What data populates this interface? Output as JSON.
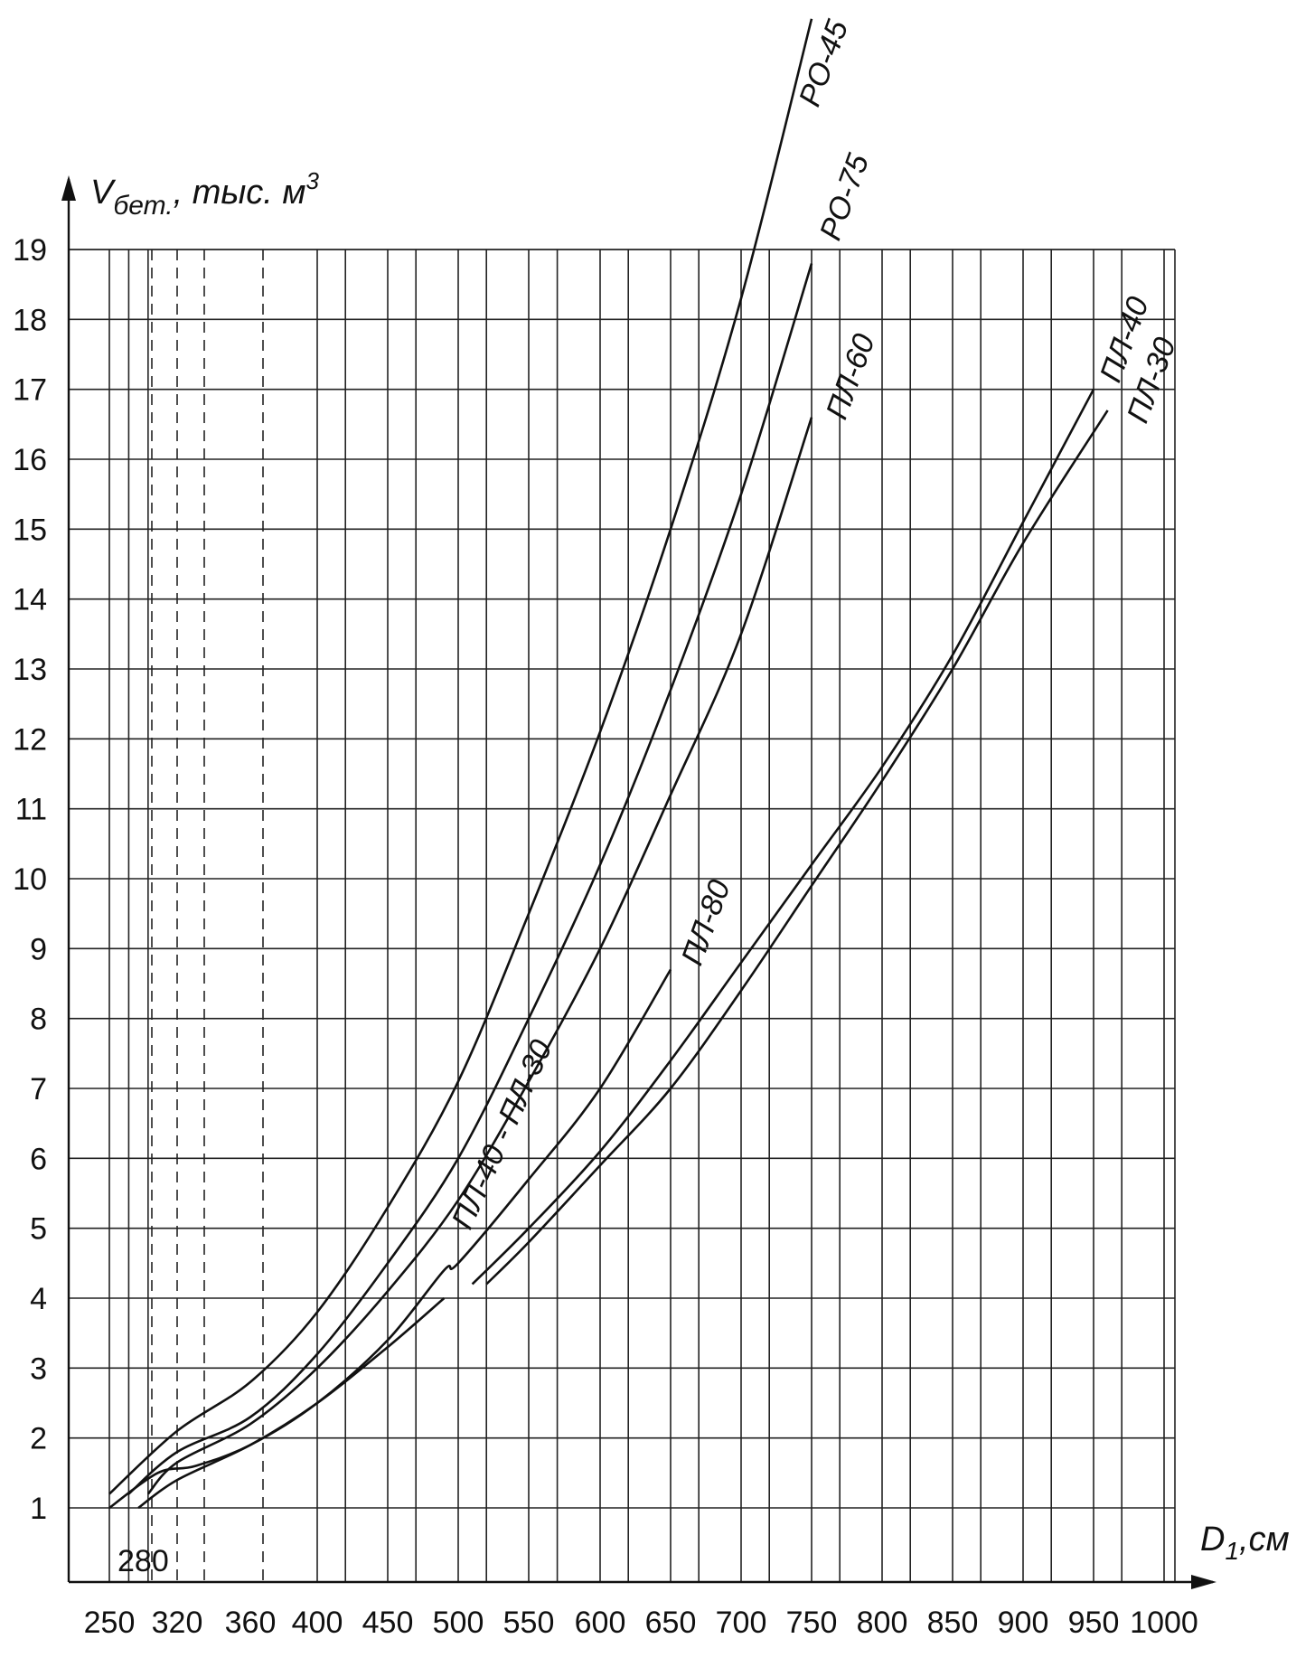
{
  "chart_data": {
    "type": "line",
    "ylabel": "Vбет., тыс. м3",
    "ylabel_parts": {
      "main": "V",
      "sub": "бет.",
      "rest": ", тыс. м",
      "sup": "3"
    },
    "xlabel": "D1,см",
    "xlabel_parts": {
      "main": "D",
      "sub": "1",
      "rest": ",см"
    },
    "x_ticks": [
      "250",
      "320",
      "360",
      "400",
      "450",
      "500",
      "550",
      "600",
      "650",
      "700",
      "750",
      "800",
      "850",
      "900",
      "950",
      "1000"
    ],
    "y_ticks": [
      "1",
      "2",
      "3",
      "4",
      "5",
      "6",
      "7",
      "8",
      "9",
      "10",
      "11",
      "12",
      "13",
      "14",
      "15",
      "16",
      "17",
      "18",
      "19"
    ],
    "extra_x_label": "280",
    "xlim": [
      250,
      1000
    ],
    "ylim": [
      1,
      19
    ],
    "grid": true,
    "series": [
      {
        "name": "РО-45",
        "points": [
          [
            250,
            1.2
          ],
          [
            320,
            2.1
          ],
          [
            360,
            2.8
          ],
          [
            400,
            3.8
          ],
          [
            450,
            5.3
          ],
          [
            500,
            7.1
          ],
          [
            550,
            9.5
          ],
          [
            600,
            12.1
          ],
          [
            650,
            15.0
          ],
          [
            700,
            18.3
          ],
          [
            750,
            22.3
          ]
        ]
      },
      {
        "name": "РО-75",
        "points": [
          [
            270,
            1.2
          ],
          [
            320,
            1.8
          ],
          [
            360,
            2.3
          ],
          [
            400,
            3.2
          ],
          [
            450,
            4.5
          ],
          [
            500,
            6.0
          ],
          [
            550,
            8.0
          ],
          [
            600,
            10.2
          ],
          [
            650,
            12.7
          ],
          [
            700,
            15.5
          ],
          [
            750,
            18.8
          ]
        ]
      },
      {
        "name": "ПЛ-60",
        "points": [
          [
            290,
            1.2
          ],
          [
            320,
            1.65
          ],
          [
            360,
            2.2
          ],
          [
            400,
            3.0
          ],
          [
            450,
            4.1
          ],
          [
            500,
            5.4
          ],
          [
            550,
            7.1
          ],
          [
            600,
            9.0
          ],
          [
            650,
            11.2
          ],
          [
            700,
            13.5
          ],
          [
            750,
            16.6
          ]
        ]
      },
      {
        "name": "ПЛ-40 - ПЛ-30",
        "points": [
          [
            250,
            1.0
          ],
          [
            300,
            1.5
          ],
          [
            330,
            1.6
          ],
          [
            360,
            1.9
          ],
          [
            400,
            2.5
          ],
          [
            450,
            3.4
          ],
          [
            490,
            4.4
          ],
          [
            500,
            4.5
          ],
          [
            550,
            5.7
          ],
          [
            600,
            7.0
          ],
          [
            650,
            8.7
          ]
        ]
      },
      {
        "name": "ПЛ-80",
        "points": [
          [
            280,
            1.0
          ],
          [
            320,
            1.4
          ],
          [
            360,
            1.9
          ],
          [
            400,
            2.5
          ],
          [
            450,
            3.3
          ],
          [
            490,
            4.0
          ]
        ]
      },
      {
        "name": "ПЛ-40",
        "points": [
          [
            510,
            4.2
          ],
          [
            550,
            5.0
          ],
          [
            600,
            6.1
          ],
          [
            650,
            7.4
          ],
          [
            700,
            8.8
          ],
          [
            750,
            10.2
          ],
          [
            800,
            11.6
          ],
          [
            850,
            13.2
          ],
          [
            900,
            15.1
          ],
          [
            950,
            17.0
          ]
        ]
      },
      {
        "name": "ПЛ-30",
        "points": [
          [
            520,
            4.2
          ],
          [
            550,
            4.8
          ],
          [
            600,
            5.9
          ],
          [
            650,
            7.0
          ],
          [
            700,
            8.4
          ],
          [
            750,
            9.9
          ],
          [
            800,
            11.4
          ],
          [
            850,
            13.0
          ],
          [
            900,
            14.8
          ],
          [
            960,
            16.7
          ]
        ]
      }
    ]
  }
}
